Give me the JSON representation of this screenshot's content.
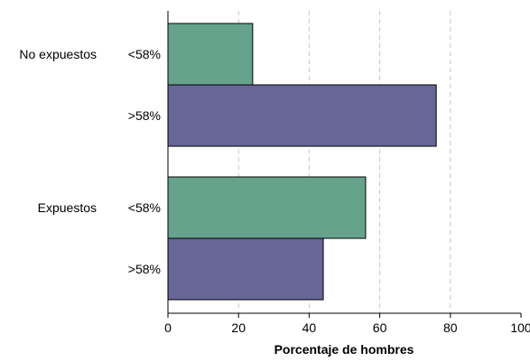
{
  "chart_data": {
    "type": "bar",
    "orientation": "horizontal",
    "title": "",
    "xlabel": "Porcentaje de hombres",
    "ylabel": "",
    "xlim": [
      0,
      100
    ],
    "xticks": [
      "0",
      "20",
      "40",
      "60",
      "80",
      "100"
    ],
    "grid": "vertical dashed",
    "groups": [
      {
        "label": "No expuestos",
        "bars": [
          {
            "label": "<58%",
            "value": 24,
            "color": "#66A38C"
          },
          {
            "label": ">58%",
            "value": 76,
            "color": "#666699"
          }
        ]
      },
      {
        "label": "Expuestos",
        "bars": [
          {
            "label": "<58%",
            "value": 56,
            "color": "#66A38C"
          },
          {
            "label": ">58%",
            "value": 44,
            "color": "#666699"
          }
        ]
      }
    ]
  }
}
